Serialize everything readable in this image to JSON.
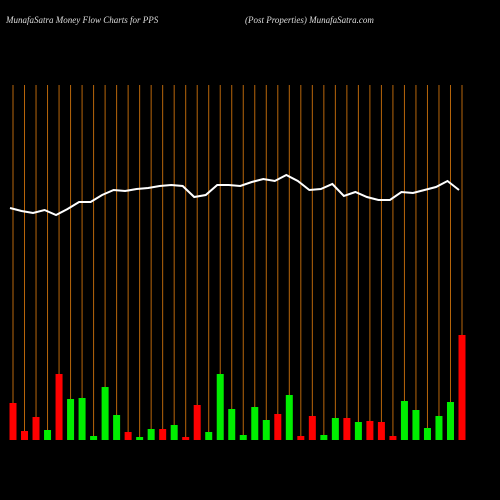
{
  "chart_data": {
    "type": "bar",
    "title": "MunafaSatra  Money Flow  Charts for PPS",
    "subtitle": "(Post Properties) MunafaSatra.com",
    "categories": [
      null,
      null,
      null,
      null,
      null,
      null,
      null,
      null,
      null,
      null,
      null,
      null,
      null,
      null,
      null,
      null,
      null,
      null,
      null,
      null,
      null,
      null,
      null,
      null,
      null,
      null,
      null,
      null,
      null,
      null,
      null,
      null,
      null,
      null,
      null,
      null,
      null,
      null,
      null,
      null
    ],
    "values": [
      37,
      9,
      23,
      10,
      66,
      41,
      42,
      4,
      53,
      25,
      8,
      3,
      11,
      11,
      15,
      3,
      35,
      8,
      66,
      31,
      5,
      33,
      20,
      26,
      45,
      4,
      24,
      5,
      22,
      22,
      18,
      19,
      18,
      4,
      39,
      30,
      12,
      24,
      38,
      105
    ],
    "colors": [
      "#ff0000",
      "#ff0000",
      "#ff0000",
      "#00ee00",
      "#ff0000",
      "#00ee00",
      "#00ee00",
      "#00ee00",
      "#00ee00",
      "#00ee00",
      "#ff0000",
      "#00ee00",
      "#00ee00",
      "#ff0000",
      "#00ee00",
      "#ff0000",
      "#ff0000",
      "#00ee00",
      "#00ee00",
      "#00ee00",
      "#00ee00",
      "#00ee00",
      "#00ee00",
      "#ff0000",
      "#00ee00",
      "#ff0000",
      "#ff0000",
      "#00ee00",
      "#00ee00",
      "#ff0000",
      "#00ee00",
      "#ff0000",
      "#ff0000",
      "#ff0000",
      "#00ee00",
      "#00ee00",
      "#00ee00",
      "#00ee00",
      "#00ee00",
      "#ff0000"
    ],
    "line_values": [
      232,
      229,
      227,
      230,
      225,
      231,
      238,
      238,
      245,
      250,
      249,
      251,
      252,
      254,
      255,
      254,
      243,
      245,
      255,
      255,
      254,
      258,
      261,
      259,
      265,
      259,
      250,
      251,
      256,
      244,
      248,
      243,
      240,
      240,
      248,
      247,
      250,
      253,
      259,
      250
    ],
    "line_color": "#ffffff",
    "grid_color": "#b8660b",
    "ylim": [
      0,
      355
    ]
  }
}
